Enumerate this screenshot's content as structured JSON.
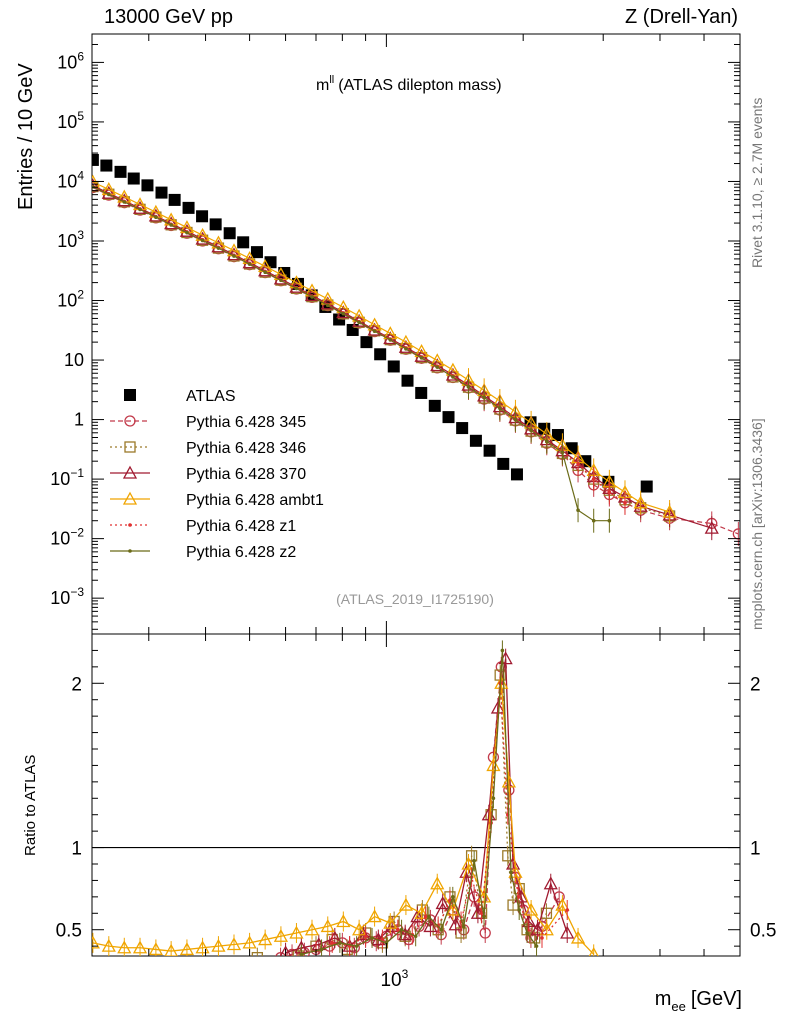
{
  "header": {
    "left": "13000 GeV pp",
    "right": "Z (Drell-Yan)"
  },
  "side_text": {
    "rivet": "Rivet 3.1.10, ≥ 2.7M events",
    "mcplots": "mcplots.cern.ch [arXiv:1306.3436]"
  },
  "chart_data": {
    "type": "scatter",
    "title_main": "m",
    "title_sup": "ll",
    "title_rest": "(ATLAS dilepton mass)",
    "analysis_tag": "(ATLAS_2019_I1725190)",
    "xlabel_main": "m",
    "xlabel_sub": "ee",
    "xlabel_unit": "[GeV]",
    "xscale": "log",
    "xlim": [
      225,
      6000
    ],
    "upper_panel": {
      "ylabel": "Entries / 10 GeV",
      "yscale": "log",
      "ylim": [
        0.00025,
        3000000
      ],
      "yticks": [
        {
          "v": 0.001,
          "b": "10",
          "e": "−3"
        },
        {
          "v": 0.01,
          "b": "10",
          "e": "−2"
        },
        {
          "v": 0.1,
          "b": "10",
          "e": "−1"
        },
        {
          "v": 1,
          "b": "1",
          "e": ""
        },
        {
          "v": 10,
          "b": "10",
          "e": ""
        },
        {
          "v": 100,
          "b": "10",
          "e": "2"
        },
        {
          "v": 1000,
          "b": "10",
          "e": "3"
        },
        {
          "v": 10000,
          "b": "10",
          "e": "4"
        },
        {
          "v": 100000,
          "b": "10",
          "e": "5"
        },
        {
          "v": 1000000,
          "b": "10",
          "e": "6"
        }
      ]
    },
    "lower_panel": {
      "ylabel": "Ratio to ATLAS",
      "ylim": [
        0.34,
        2.3
      ],
      "yticks": [
        {
          "v": 0.5,
          "t": "0.5"
        },
        {
          "v": 1,
          "t": "1"
        },
        {
          "v": 2,
          "t": "2"
        }
      ],
      "reference_line": 1
    },
    "xticks": [
      {
        "v": 1000,
        "b": "10",
        "e": "3"
      }
    ],
    "legend_position": "middle-left",
    "series": [
      {
        "name": "ATLAS",
        "color": "#000000",
        "marker": "filled-square",
        "line": "none",
        "x": [
          226,
          242,
          260,
          278,
          298,
          320,
          342,
          367,
          393,
          421,
          452,
          484,
          519,
          556,
          596,
          639,
          685,
          734,
          787,
          843,
          904,
          969,
          1038,
          1113,
          1193,
          1278,
          1370,
          1468,
          1574,
          1687,
          1808,
          1938,
          2076,
          2225,
          2385,
          2557,
          2740,
          3080,
          3740
        ],
        "y": [
          23000,
          18500,
          14500,
          11200,
          8600,
          6500,
          4900,
          3600,
          2600,
          1900,
          1350,
          950,
          650,
          440,
          290,
          190,
          122,
          78,
          48,
          32,
          20,
          12.5,
          7.8,
          4.5,
          2.8,
          1.7,
          1.1,
          0.72,
          0.44,
          0.3,
          0.18,
          0.12,
          0.9,
          0.7,
          0.55,
          0.33,
          0.2,
          0.09,
          0.075
        ]
      },
      {
        "name": "Pythia 6.428 345",
        "color": "#c23a4a",
        "marker": "open-circle",
        "line": "dashed",
        "x": [
          226,
          245,
          265,
          287,
          311,
          336,
          364,
          394,
          427,
          462,
          500,
          541,
          586,
          634,
          686,
          743,
          804,
          871,
          942,
          1020,
          1104,
          1195,
          1294,
          1401,
          1516,
          1641,
          1777,
          1923,
          2082,
          2254,
          2440,
          2641,
          2859,
          3095,
          3350,
          3627,
          4200,
          5200,
          5950
        ],
        "y": [
          7900,
          5900,
          4400,
          3300,
          2450,
          1820,
          1350,
          1000,
          740,
          545,
          400,
          294,
          215,
          156,
          113,
          82,
          59,
          42,
          30,
          21.5,
          15.2,
          10.7,
          7.4,
          5.1,
          3.4,
          2.2,
          1.45,
          0.95,
          0.62,
          0.4,
          0.26,
          0.14,
          0.08,
          0.055,
          0.04,
          0.03,
          0.022,
          0.018,
          0.012
        ]
      },
      {
        "name": "Pythia 6.428 346",
        "color": "#9c7a2a",
        "marker": "open-square",
        "line": "dotted",
        "x": [
          226,
          245,
          265,
          287,
          311,
          336,
          364,
          394,
          427,
          462,
          500,
          541,
          586,
          634,
          686,
          743,
          804,
          871,
          942,
          1020,
          1104,
          1195,
          1294,
          1401,
          1516,
          1641,
          1777,
          1923,
          2082,
          2254,
          2440,
          2641,
          2859,
          3095,
          3350,
          3627,
          4200
        ],
        "y": [
          8200,
          6100,
          4550,
          3400,
          2520,
          1870,
          1390,
          1030,
          760,
          560,
          410,
          300,
          220,
          160,
          116,
          84,
          60,
          43,
          31,
          22,
          15.6,
          11,
          7.6,
          5.2,
          3.5,
          2.3,
          1.5,
          0.98,
          0.64,
          0.42,
          0.27,
          0.17,
          0.1,
          0.065,
          0.045,
          0.033,
          0.024
        ]
      },
      {
        "name": "Pythia 6.428 370",
        "color": "#a01a30",
        "marker": "open-triangle",
        "line": "solid",
        "x": [
          226,
          245,
          265,
          287,
          311,
          336,
          364,
          394,
          427,
          462,
          500,
          541,
          586,
          634,
          686,
          743,
          804,
          871,
          942,
          1020,
          1104,
          1195,
          1294,
          1401,
          1516,
          1641,
          1777,
          1923,
          2082,
          2254,
          2440,
          2641,
          2859,
          3095,
          3350,
          3627,
          4200,
          5200
        ],
        "y": [
          8500,
          6350,
          4750,
          3550,
          2640,
          1960,
          1460,
          1080,
          800,
          590,
          432,
          316,
          231,
          168,
          122,
          88,
          63,
          45,
          32,
          23,
          16.4,
          11.6,
          8.1,
          5.6,
          3.8,
          2.5,
          1.65,
          1.08,
          0.7,
          0.46,
          0.3,
          0.19,
          0.11,
          0.07,
          0.05,
          0.035,
          0.025,
          0.015
        ]
      },
      {
        "name": "Pythia 6.428 ambt1",
        "color": "#f0a500",
        "marker": "open-triangle",
        "line": "solid",
        "x": [
          226,
          245,
          265,
          287,
          311,
          336,
          364,
          394,
          427,
          462,
          500,
          541,
          586,
          634,
          686,
          743,
          804,
          871,
          942,
          1020,
          1104,
          1195,
          1294,
          1401,
          1516,
          1641,
          1777,
          1923,
          2082,
          2254,
          2440,
          2641,
          2859,
          3095,
          3350,
          3627,
          4200
        ],
        "y": [
          9800,
          7350,
          5500,
          4100,
          3050,
          2270,
          1690,
          1250,
          930,
          690,
          510,
          375,
          275,
          200,
          146,
          106,
          77,
          55,
          39,
          28,
          20,
          14,
          9.8,
          6.8,
          4.6,
          3.1,
          2.05,
          1.35,
          0.88,
          0.57,
          0.37,
          0.23,
          0.14,
          0.09,
          0.06,
          0.04,
          0.028
        ]
      },
      {
        "name": "Pythia 6.428 z1",
        "color": "#e03030",
        "marker": "dot",
        "line": "dotted",
        "x": [
          226,
          245,
          265,
          287,
          311,
          336,
          364,
          394,
          427,
          462,
          500,
          541,
          586,
          634,
          686,
          743,
          804,
          871,
          942,
          1020,
          1104,
          1195,
          1294,
          1401,
          1516,
          1641,
          1777,
          1923,
          2082,
          2254,
          2440,
          2641,
          2859,
          3095,
          3350
        ],
        "y": [
          8300,
          6200,
          4630,
          3460,
          2570,
          1910,
          1420,
          1050,
          780,
          575,
          421,
          308,
          225,
          164,
          119,
          86,
          62,
          44,
          31.5,
          22.5,
          16,
          11.3,
          7.9,
          5.4,
          3.7,
          2.4,
          1.6,
          1.04,
          0.68,
          0.44,
          0.29,
          0.18,
          0.1,
          0.06,
          0.04
        ]
      },
      {
        "name": "Pythia 6.428 z2",
        "color": "#6b6b18",
        "marker": "dot",
        "line": "solid",
        "x": [
          226,
          245,
          265,
          287,
          311,
          336,
          364,
          394,
          427,
          462,
          500,
          541,
          586,
          634,
          686,
          743,
          804,
          871,
          942,
          1020,
          1104,
          1195,
          1294,
          1401,
          1516,
          1641,
          1777,
          1923,
          2082,
          2254,
          2440,
          2641,
          2859,
          3095
        ],
        "y": [
          8100,
          6050,
          4520,
          3380,
          2510,
          1860,
          1380,
          1020,
          757,
          558,
          408,
          299,
          218,
          159,
          115,
          83,
          60,
          43,
          30.5,
          21.8,
          15.4,
          10.9,
          7.6,
          5.2,
          3.55,
          2.35,
          1.55,
          1.0,
          0.66,
          0.43,
          0.28,
          0.03,
          0.02,
          0.02
        ]
      }
    ],
    "ratio_series": [
      {
        "name": "Pythia 6.428 345",
        "x": [
          585,
          620,
          660,
          700,
          750,
          800,
          850,
          900,
          950,
          1000,
          1060,
          1120,
          1180,
          1250,
          1320,
          1400,
          1480,
          1560,
          1650,
          1720,
          1790,
          1860,
          1920,
          2000,
          2080,
          2200,
          2400
        ],
        "y": [
          0.33,
          0.35,
          0.36,
          0.38,
          0.4,
          0.42,
          0.39,
          0.45,
          0.43,
          0.46,
          0.5,
          0.44,
          0.52,
          0.56,
          0.47,
          0.62,
          0.5,
          0.7,
          0.48,
          1.55,
          2.1,
          1.35,
          0.82,
          0.62,
          0.45,
          0.52,
          0.7
        ]
      },
      {
        "name": "Pythia 6.428 346",
        "x": [
          520,
          640,
          700,
          760,
          820,
          900,
          980,
          1040,
          1100,
          1200,
          1300,
          1380,
          1460,
          1540,
          1620,
          1700,
          1780,
          1850,
          1900,
          1960,
          2040,
          2120,
          2250
        ],
        "y": [
          0.33,
          0.34,
          0.4,
          0.44,
          0.38,
          0.48,
          0.42,
          0.55,
          0.46,
          0.62,
          0.5,
          0.7,
          0.48,
          0.95,
          0.6,
          1.2,
          2.05,
          0.95,
          0.65,
          0.75,
          0.5,
          0.45,
          0.6
        ]
      },
      {
        "name": "Pythia 6.428 370",
        "x": [
          600,
          650,
          710,
          770,
          830,
          890,
          960,
          1030,
          1100,
          1170,
          1250,
          1330,
          1420,
          1500,
          1590,
          1680,
          1760,
          1830,
          1900,
          1980,
          2060,
          2150,
          2300,
          2500
        ],
        "y": [
          0.36,
          0.39,
          0.41,
          0.45,
          0.4,
          0.47,
          0.44,
          0.52,
          0.47,
          0.58,
          0.52,
          0.66,
          0.53,
          0.85,
          0.6,
          1.2,
          1.85,
          2.15,
          0.9,
          0.7,
          0.55,
          0.5,
          0.78,
          0.48
        ]
      },
      {
        "name": "Pythia 6.428 ambt1",
        "x": [
          226,
          245,
          265,
          287,
          311,
          336,
          364,
          394,
          427,
          462,
          500,
          541,
          586,
          634,
          686,
          743,
          804,
          871,
          942,
          1020,
          1104,
          1195,
          1294,
          1401,
          1516,
          1641,
          1720,
          1790,
          1860,
          1923,
          2082,
          2254,
          2440,
          2641,
          2859
        ],
        "y": [
          0.42,
          0.4,
          0.39,
          0.39,
          0.38,
          0.37,
          0.38,
          0.39,
          0.4,
          0.41,
          0.42,
          0.44,
          0.46,
          0.48,
          0.5,
          0.52,
          0.55,
          0.5,
          0.58,
          0.54,
          0.65,
          0.6,
          0.78,
          0.62,
          0.9,
          0.7,
          1.5,
          2.0,
          1.4,
          0.85,
          0.62,
          0.5,
          0.65,
          0.45,
          0.35
        ]
      },
      {
        "name": "Pythia 6.428 z1",
        "x": [
          700,
          760,
          830,
          900,
          980,
          1060,
          1140,
          1220,
          1300,
          1380,
          1460,
          1540,
          1620,
          1700,
          1780,
          1850,
          1950,
          2050,
          2200,
          2500
        ],
        "y": [
          0.37,
          0.42,
          0.4,
          0.46,
          0.44,
          0.5,
          0.47,
          0.58,
          0.52,
          0.68,
          0.55,
          0.82,
          0.6,
          1.15,
          2.0,
          1.2,
          0.7,
          0.5,
          0.45,
          0.62
        ]
      },
      {
        "name": "Pythia 6.428 z2",
        "x": [
          650,
          720,
          790,
          860,
          930,
          1000,
          1080,
          1160,
          1240,
          1320,
          1400,
          1480,
          1560,
          1640,
          1720,
          1800,
          1880,
          1960,
          2040,
          2140
        ],
        "y": [
          0.35,
          0.38,
          0.42,
          0.4,
          0.45,
          0.42,
          0.5,
          0.46,
          0.58,
          0.5,
          0.7,
          0.52,
          0.92,
          0.58,
          1.3,
          2.2,
          0.85,
          0.62,
          0.48,
          0.4
        ]
      }
    ]
  }
}
